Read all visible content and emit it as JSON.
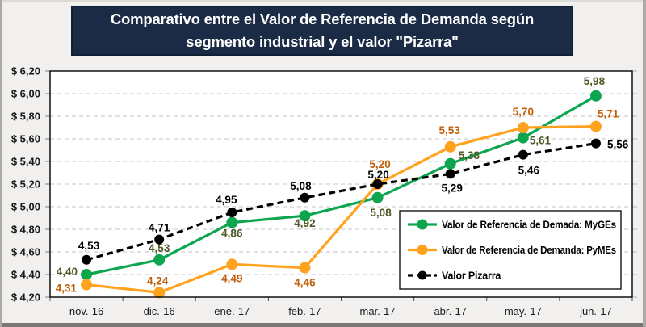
{
  "title": {
    "text": "Comparativo entre el Valor de Referencia de Demanda según segmento industrial y el valor \"Pizarra\""
  },
  "chart_data": {
    "type": "line",
    "categories": [
      "nov.-16",
      "dic.-16",
      "ene.-17",
      "feb.-17",
      "mar.-17",
      "abr.-17",
      "may.-17",
      "jun.-17"
    ],
    "series": [
      {
        "name": "Valor de Referencia de Demada: MyGEs",
        "color": "#0DA64E",
        "label_color": "#4E5A25",
        "dash": null,
        "marker_radius": 7,
        "values": [
          4.4,
          4.53,
          4.86,
          4.92,
          5.08,
          5.38,
          5.61,
          5.98
        ],
        "labels": [
          "4,40",
          "4,53",
          "4,86",
          "4,92",
          "5,08",
          "5,38",
          "5,61",
          "5,98"
        ],
        "label_offsets": [
          [
            -11,
            1,
            "end"
          ],
          [
            0,
            -10,
            "middle"
          ],
          [
            0,
            18,
            "middle"
          ],
          [
            0,
            14,
            "middle"
          ],
          [
            4,
            23,
            "middle"
          ],
          [
            10,
            -6,
            "start"
          ],
          [
            8,
            8,
            "start"
          ],
          [
            -2,
            -14,
            "middle"
          ]
        ]
      },
      {
        "name": "Valor de Referencia de Demanda: PyMEs",
        "color": "#FFA21D",
        "label_color": "#C05F0B",
        "dash": null,
        "marker_radius": 7,
        "values": [
          4.31,
          4.24,
          4.49,
          4.46,
          5.2,
          5.53,
          5.7,
          5.71
        ],
        "labels": [
          "4,31",
          "4,24",
          "4,49",
          "4,46",
          "5,20",
          "5,53",
          "5,70",
          "5,71"
        ],
        "label_offsets": [
          [
            -12,
            9,
            "end"
          ],
          [
            -2,
            -10,
            "middle"
          ],
          [
            0,
            22,
            "middle"
          ],
          [
            0,
            23,
            "middle"
          ],
          [
            3,
            -20,
            "middle"
          ],
          [
            -1,
            -16,
            "middle"
          ],
          [
            0,
            -15,
            "middle"
          ],
          [
            2,
            -11,
            "start"
          ]
        ]
      },
      {
        "name": "Valor Pizarra",
        "color": "#000000",
        "label_color": "#000000",
        "dash": "8 5",
        "marker_radius": 6,
        "values": [
          4.53,
          4.71,
          4.95,
          5.08,
          5.2,
          5.29,
          5.46,
          5.56
        ],
        "labels": [
          "4,53",
          "4,71",
          "4,95",
          "5,08",
          "5,20",
          "5,29",
          "5,46",
          "5,56"
        ],
        "label_offsets": [
          [
            3,
            -13,
            "middle"
          ],
          [
            0,
            -10,
            "middle"
          ],
          [
            -7,
            -11,
            "middle"
          ],
          [
            -5,
            -10,
            "middle"
          ],
          [
            1,
            -7,
            "middle"
          ],
          [
            2,
            22,
            "middle"
          ],
          [
            7,
            24,
            "middle"
          ],
          [
            14,
            6,
            "start"
          ]
        ]
      }
    ],
    "y_axis": {
      "min": 4.2,
      "max": 6.2,
      "step": 0.2,
      "tick_labels_top_to_bottom": [
        "$ 6,20",
        "$ 6,00",
        "$ 5,80",
        "$ 5,60",
        "$ 5,40",
        "$ 5,20",
        "$ 5,00",
        "$ 4,80",
        "$ 4,60",
        "$ 4,40",
        "$ 4,20"
      ]
    },
    "x_axis": {
      "tick_labels": [
        "nov.-16",
        "dic.-16",
        "ene.-17",
        "feb.-17",
        "mar.-17",
        "abr.-17",
        "may.-17",
        "jun.-17"
      ]
    },
    "grid": true,
    "legend_position": "inside-bottom-right",
    "colors": {
      "plot_background": "#FFFFFF",
      "chart_background": "#F1F0EE",
      "title_background": "#1B2B45",
      "gridline": "#C5C5C5"
    }
  }
}
